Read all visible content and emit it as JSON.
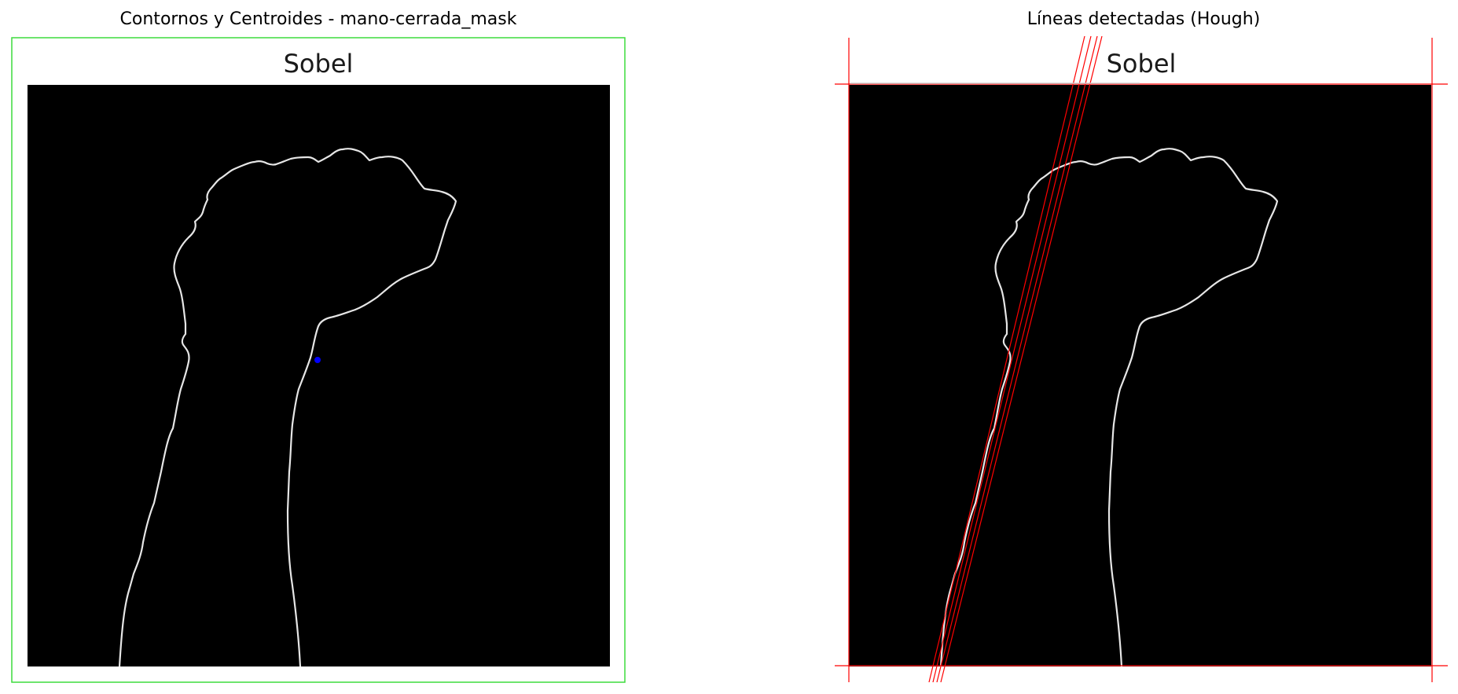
{
  "left_panel": {
    "title": "Contornos y Centroides - mano-cerrada_mask",
    "inner_title": "Sobel",
    "bounding_box_color": "#3ddc3d",
    "centroid_color": "#0000ff"
  },
  "right_panel": {
    "title": "Líneas detectadas (Hough)",
    "inner_title": "Sobel",
    "line_color": "#ff0000"
  },
  "image": {
    "background_color": "#000000",
    "edge_color": "#e6e6e6"
  }
}
